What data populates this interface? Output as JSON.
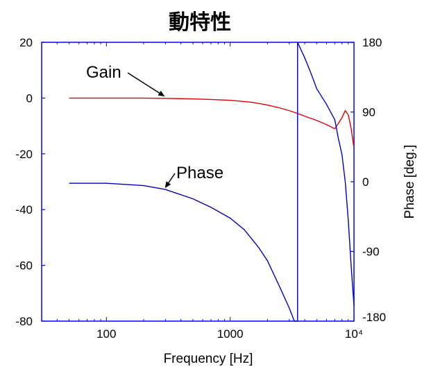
{
  "chart_data": {
    "type": "line",
    "title": "動特性",
    "xlabel": "Frequency [Hz]",
    "ylabel_left": "",
    "ylabel_right": "Phase [deg.]",
    "x_scale": "log",
    "xlim": [
      30,
      10000
    ],
    "ylim_left": [
      -80,
      20
    ],
    "ylim_right": [
      -180,
      180
    ],
    "x_ticks": [
      {
        "value": 100,
        "label": "100"
      },
      {
        "value": 1000,
        "label": "1000"
      },
      {
        "value": 10000,
        "label": "10⁴"
      }
    ],
    "y_ticks_left": [
      {
        "value": 20,
        "label": "20"
      },
      {
        "value": 0,
        "label": "0"
      },
      {
        "value": -20,
        "label": "-20"
      },
      {
        "value": -40,
        "label": "-40"
      },
      {
        "value": -60,
        "label": "-60"
      },
      {
        "value": -80,
        "label": "-80"
      }
    ],
    "y_ticks_right": [
      {
        "value": 180,
        "label": "180"
      },
      {
        "value": 90,
        "label": "90"
      },
      {
        "value": 0,
        "label": "0"
      },
      {
        "value": -90,
        "label": "-90"
      },
      {
        "value": -180,
        "label": "-180"
      }
    ],
    "grid": false,
    "series": [
      {
        "name": "Gain",
        "axis": "left",
        "color": "#e00000",
        "x": [
          50,
          100,
          200,
          300,
          500,
          700,
          1000,
          1500,
          2000,
          2500,
          3000,
          3500,
          4000,
          5000,
          6000,
          7000,
          7500,
          8000,
          8500,
          9000,
          9500,
          10000
        ],
        "y": [
          0,
          0,
          0,
          -0.1,
          -0.3,
          -0.5,
          -0.8,
          -1.5,
          -2.5,
          -3.5,
          -4.5,
          -5.5,
          -6.5,
          -8,
          -9.5,
          -11,
          -9,
          -7,
          -4.5,
          -6,
          -11,
          -18
        ]
      },
      {
        "name": "Phase",
        "axis": "right",
        "color": "#0000c0",
        "x": [
          50,
          100,
          200,
          300,
          500,
          700,
          1000,
          1300,
          1700,
          2000,
          2500,
          3000,
          3300,
          3500,
          3500,
          4000,
          4500,
          5000,
          6000,
          7000,
          7500,
          8000,
          8500,
          9000,
          9500,
          10000
        ],
        "y": [
          -2,
          -2,
          -5,
          -10,
          -22,
          -33,
          -47,
          -62,
          -85,
          -102,
          -135,
          -163,
          -180,
          -180,
          180,
          160,
          140,
          120,
          100,
          80,
          55,
          35,
          0,
          -50,
          -110,
          -160
        ]
      }
    ],
    "annotations": [
      {
        "text": "Gain",
        "target_x": 300,
        "target_y": 0,
        "axis": "left"
      },
      {
        "text": "Phase",
        "target_x": 300,
        "target_y": -10,
        "axis": "right"
      }
    ]
  }
}
